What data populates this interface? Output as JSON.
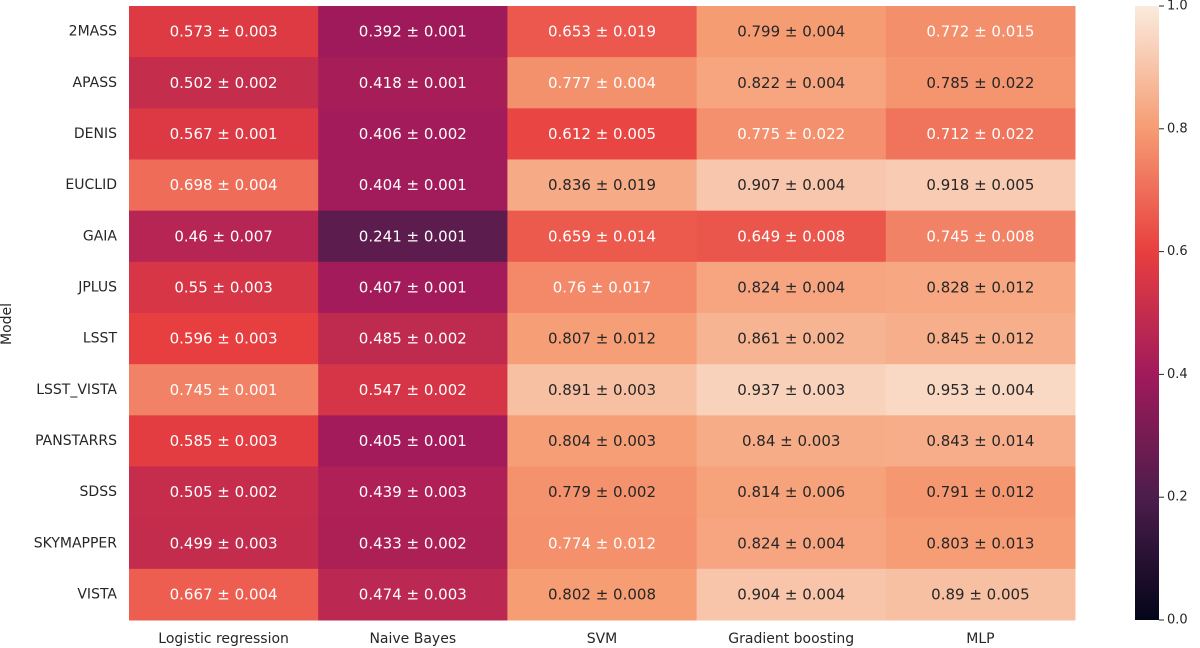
{
  "chart_data": {
    "type": "heatmap",
    "ylabel": "Model",
    "xlabel": "",
    "rows": [
      "2MASS",
      "APASS",
      "DENIS",
      "EUCLID",
      "GAIA",
      "JPLUS",
      "LSST",
      "LSST_VISTA",
      "PANSTARRS",
      "SDSS",
      "SKYMAPPER",
      "VISTA"
    ],
    "columns": [
      "Logistic regression",
      "Naive Bayes",
      "SVM",
      "Gradient boosting",
      "MLP"
    ],
    "values": [
      [
        0.573,
        0.392,
        0.653,
        0.799,
        0.772
      ],
      [
        0.502,
        0.418,
        0.777,
        0.822,
        0.785
      ],
      [
        0.567,
        0.406,
        0.612,
        0.775,
        0.712
      ],
      [
        0.698,
        0.404,
        0.836,
        0.907,
        0.918
      ],
      [
        0.46,
        0.241,
        0.659,
        0.649,
        0.745
      ],
      [
        0.55,
        0.407,
        0.76,
        0.824,
        0.828
      ],
      [
        0.596,
        0.485,
        0.807,
        0.861,
        0.845
      ],
      [
        0.745,
        0.547,
        0.891,
        0.937,
        0.953
      ],
      [
        0.585,
        0.405,
        0.804,
        0.84,
        0.843
      ],
      [
        0.505,
        0.439,
        0.779,
        0.814,
        0.791
      ],
      [
        0.499,
        0.433,
        0.774,
        0.824,
        0.803
      ],
      [
        0.667,
        0.474,
        0.802,
        0.904,
        0.89
      ]
    ],
    "annotations": [
      [
        "0.573 ± 0.003",
        "0.392 ± 0.001",
        "0.653 ± 0.019",
        "0.799 ± 0.004",
        "0.772 ± 0.015"
      ],
      [
        "0.502 ± 0.002",
        "0.418 ± 0.001",
        "0.777 ± 0.004",
        "0.822 ± 0.004",
        "0.785 ± 0.022"
      ],
      [
        "0.567 ± 0.001",
        "0.406 ± 0.002",
        "0.612 ± 0.005",
        "0.775 ± 0.022",
        "0.712 ± 0.022"
      ],
      [
        "0.698 ± 0.004",
        "0.404 ± 0.001",
        "0.836 ± 0.019",
        "0.907 ± 0.004",
        "0.918 ± 0.005"
      ],
      [
        "0.46 ± 0.007",
        "0.241 ± 0.001",
        "0.659 ± 0.014",
        "0.649 ± 0.008",
        "0.745 ± 0.008"
      ],
      [
        "0.55 ± 0.003",
        "0.407 ± 0.001",
        "0.76 ± 0.017",
        "0.824 ± 0.004",
        "0.828 ± 0.012"
      ],
      [
        "0.596 ± 0.003",
        "0.485 ± 0.002",
        "0.807 ± 0.012",
        "0.861 ± 0.002",
        "0.845 ± 0.012"
      ],
      [
        "0.745 ± 0.001",
        "0.547 ± 0.002",
        "0.891 ± 0.003",
        "0.937 ± 0.003",
        "0.953 ± 0.004"
      ],
      [
        "0.585 ± 0.003",
        "0.405 ± 0.001",
        "0.804 ± 0.003",
        "0.84 ± 0.003",
        "0.843 ± 0.014"
      ],
      [
        "0.505 ± 0.002",
        "0.439 ± 0.003",
        "0.779 ± 0.002",
        "0.814 ± 0.006",
        "0.791 ± 0.012"
      ],
      [
        "0.499 ± 0.003",
        "0.433 ± 0.002",
        "0.774 ± 0.012",
        "0.824 ± 0.004",
        "0.803 ± 0.013"
      ],
      [
        "0.667 ± 0.004",
        "0.474 ± 0.003",
        "0.802 ± 0.008",
        "0.904 ± 0.004",
        "0.89 ± 0.005"
      ]
    ],
    "colorbar": {
      "range": [
        0.0,
        1.0
      ],
      "ticks": [
        0.0,
        0.2,
        0.4,
        0.6,
        0.8,
        1.0
      ],
      "tick_labels": [
        "0.0",
        "0.2",
        "0.4",
        "0.6",
        "0.8",
        "1.0"
      ],
      "colormap": "rocket",
      "colormap_stops": [
        "#03051a",
        "#4c1d4b",
        "#a11a5b",
        "#e83f3f",
        "#f69c73",
        "#faebdd"
      ]
    },
    "grid": false,
    "legend": "colorbar-right"
  }
}
